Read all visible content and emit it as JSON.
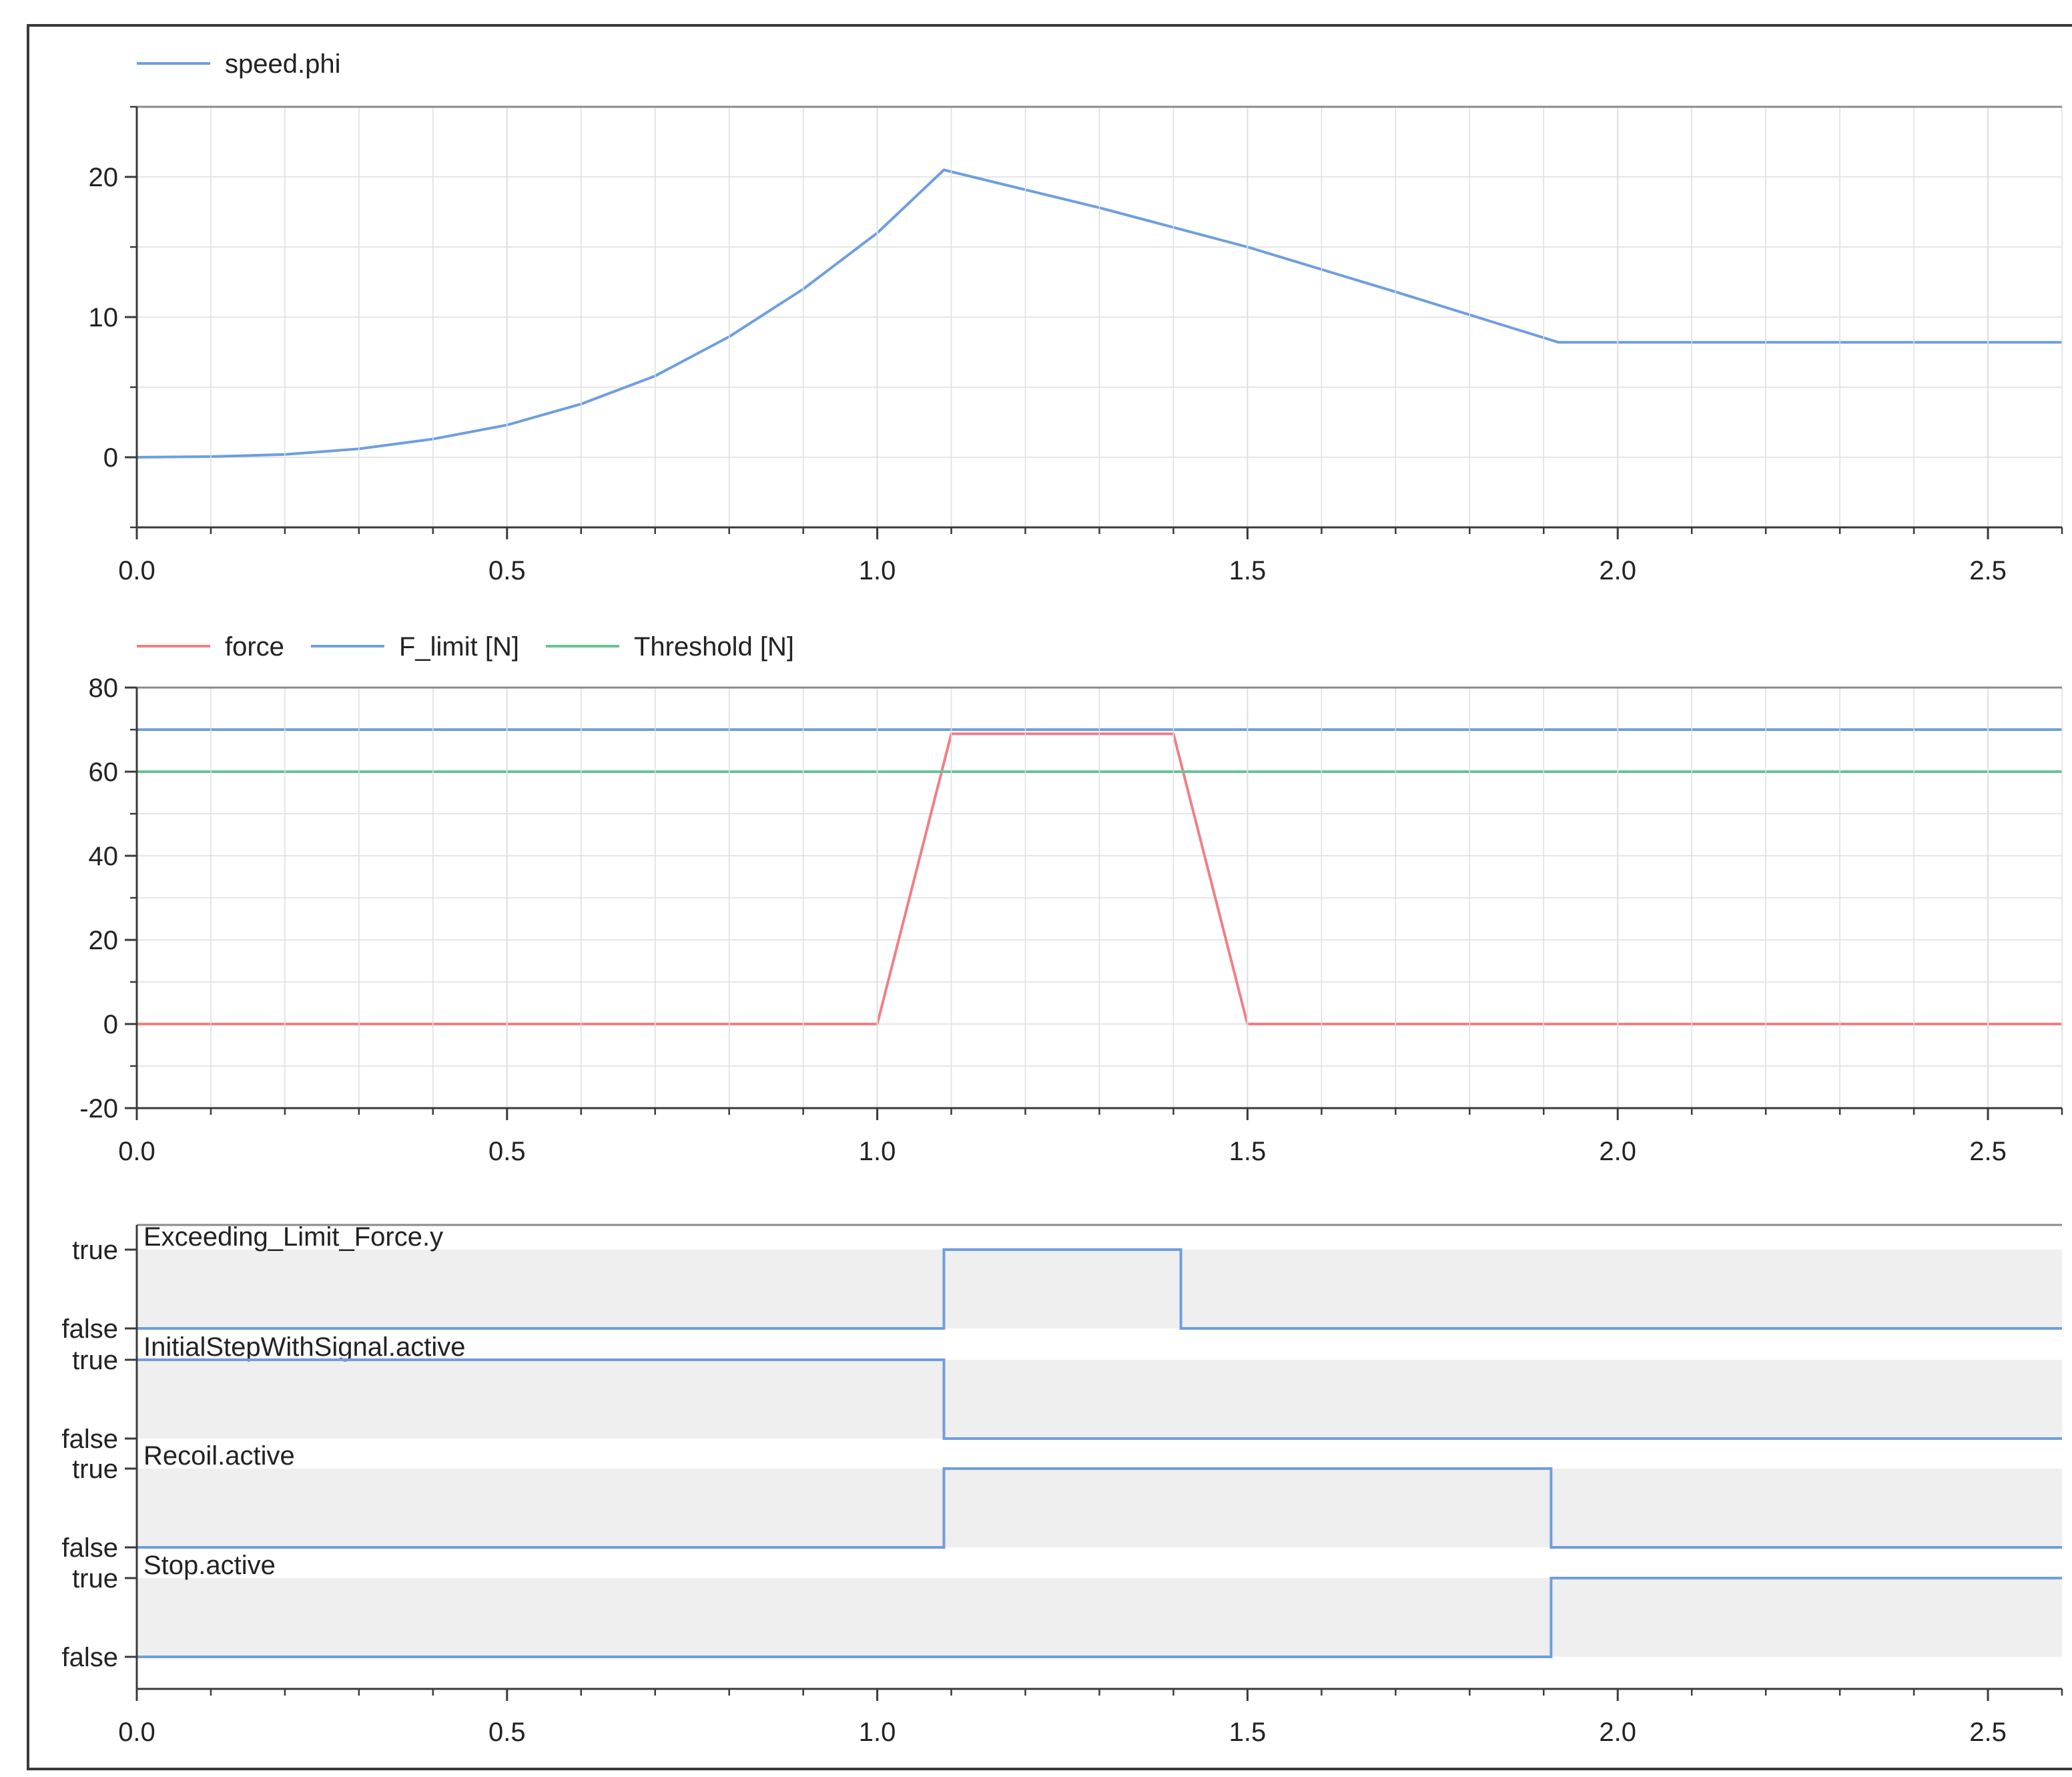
{
  "colors": {
    "blue": "#6f9ee0",
    "red": "#f07f86",
    "green": "#66c495",
    "boolFill": "#efefef",
    "grid": "#dedede",
    "axis": "#3a3a3a"
  },
  "chart_data": [
    {
      "type": "line",
      "legend": [
        "speed.phi"
      ],
      "xlim": [
        0,
        2.6
      ],
      "ylim": [
        -5,
        25
      ],
      "xticks": [
        "0.0",
        "0.5",
        "1.0",
        "1.5",
        "2.0",
        "2.5"
      ],
      "yticks": [
        "0",
        "10",
        "20"
      ],
      "grid": true,
      "legend_position": "top-left",
      "series": [
        {
          "name": "speed.phi",
          "color": "blue",
          "x": [
            0,
            0.1,
            0.2,
            0.3,
            0.4,
            0.5,
            0.6,
            0.7,
            0.8,
            0.9,
            1.0,
            1.09,
            1.3,
            1.5,
            1.7,
            1.92,
            2.2,
            2.6
          ],
          "y": [
            0,
            0.05,
            0.2,
            0.6,
            1.3,
            2.3,
            3.8,
            5.8,
            8.6,
            12.0,
            16.0,
            20.5,
            17.8,
            15.0,
            11.8,
            8.2,
            8.2,
            8.2
          ]
        }
      ]
    },
    {
      "type": "line",
      "legend": [
        "force",
        "F_limit [N]",
        "Threshold [N]"
      ],
      "xlim": [
        0,
        2.6
      ],
      "ylim": [
        -20,
        80
      ],
      "xticks": [
        "0.0",
        "0.5",
        "1.0",
        "1.5",
        "2.0",
        "2.5"
      ],
      "yticks": [
        "-20",
        "0",
        "20",
        "40",
        "60",
        "80"
      ],
      "grid": true,
      "legend_position": "top-left",
      "series": [
        {
          "name": "force",
          "color": "red",
          "x": [
            0,
            1.0,
            1.1,
            1.4,
            1.5,
            2.6
          ],
          "y": [
            0,
            0,
            69,
            69,
            0,
            0
          ]
        },
        {
          "name": "F_limit [N]",
          "color": "blue",
          "x": [
            0,
            2.6
          ],
          "y": [
            70,
            70
          ]
        },
        {
          "name": "Threshold [N]",
          "color": "green",
          "x": [
            0,
            2.6
          ],
          "y": [
            60,
            60
          ]
        }
      ]
    },
    {
      "type": "line",
      "xlim": [
        0,
        2.6
      ],
      "xticks": [
        "0.0",
        "0.5",
        "1.0",
        "1.5",
        "2.0",
        "2.5"
      ],
      "true_label": "true",
      "false_label": "false",
      "grid": false,
      "series": [
        {
          "name": "Exceeding_Limit_Force.y",
          "color": "blue",
          "x": [
            0,
            1.09,
            1.09,
            1.41,
            1.41,
            2.6
          ],
          "y": [
            0,
            0,
            1,
            1,
            0,
            0
          ]
        },
        {
          "name": "InitialStepWithSignal.active",
          "color": "blue",
          "x": [
            0,
            1.09,
            1.09,
            2.6
          ],
          "y": [
            1,
            1,
            0,
            0
          ]
        },
        {
          "name": "Recoil.active",
          "color": "blue",
          "x": [
            0,
            1.09,
            1.09,
            1.91,
            1.91,
            2.6
          ],
          "y": [
            0,
            0,
            1,
            1,
            0,
            0
          ]
        },
        {
          "name": "Stop.active",
          "color": "blue",
          "x": [
            0,
            1.91,
            1.91,
            2.6
          ],
          "y": [
            0,
            0,
            1,
            1
          ]
        }
      ]
    }
  ]
}
